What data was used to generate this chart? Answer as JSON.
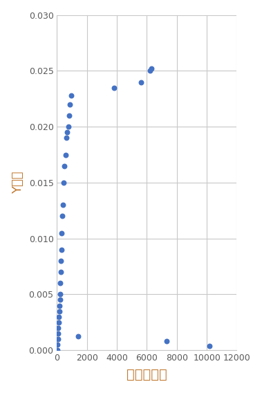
{
  "x": [
    10,
    30,
    50,
    70,
    90,
    110,
    130,
    150,
    170,
    190,
    210,
    230,
    250,
    270,
    290,
    320,
    360,
    400,
    450,
    500,
    560,
    620,
    680,
    740,
    800,
    870,
    950,
    1400,
    3800,
    5600,
    6200,
    6300,
    7300,
    10200
  ],
  "y": [
    0.0,
    0.0005,
    0.001,
    0.0015,
    0.002,
    0.0025,
    0.003,
    0.0035,
    0.004,
    0.0045,
    0.005,
    0.006,
    0.007,
    0.008,
    0.009,
    0.0105,
    0.012,
    0.013,
    0.015,
    0.0165,
    0.0175,
    0.019,
    0.0195,
    0.02,
    0.021,
    0.022,
    0.0228,
    0.00125,
    0.0235,
    0.024,
    0.025,
    0.0252,
    0.0008,
    0.0004
  ],
  "xlabel": "乱流消失率",
  "ylabel": "Y坐标",
  "xlim": [
    0,
    12000
  ],
  "ylim": [
    0,
    0.03
  ],
  "xticks": [
    0,
    2000,
    4000,
    6000,
    8000,
    10000,
    12000
  ],
  "yticks": [
    0,
    0.005,
    0.01,
    0.015,
    0.02,
    0.025,
    0.03
  ],
  "dot_color": "#4472C4",
  "dot_size": 22,
  "background_color": "#ffffff",
  "grid_color": "#c8c8c8",
  "tick_label_color": "#595959",
  "axis_label_color": "#c07830",
  "tick_fontsize": 9,
  "xlabel_fontsize": 14,
  "ylabel_fontsize": 13
}
